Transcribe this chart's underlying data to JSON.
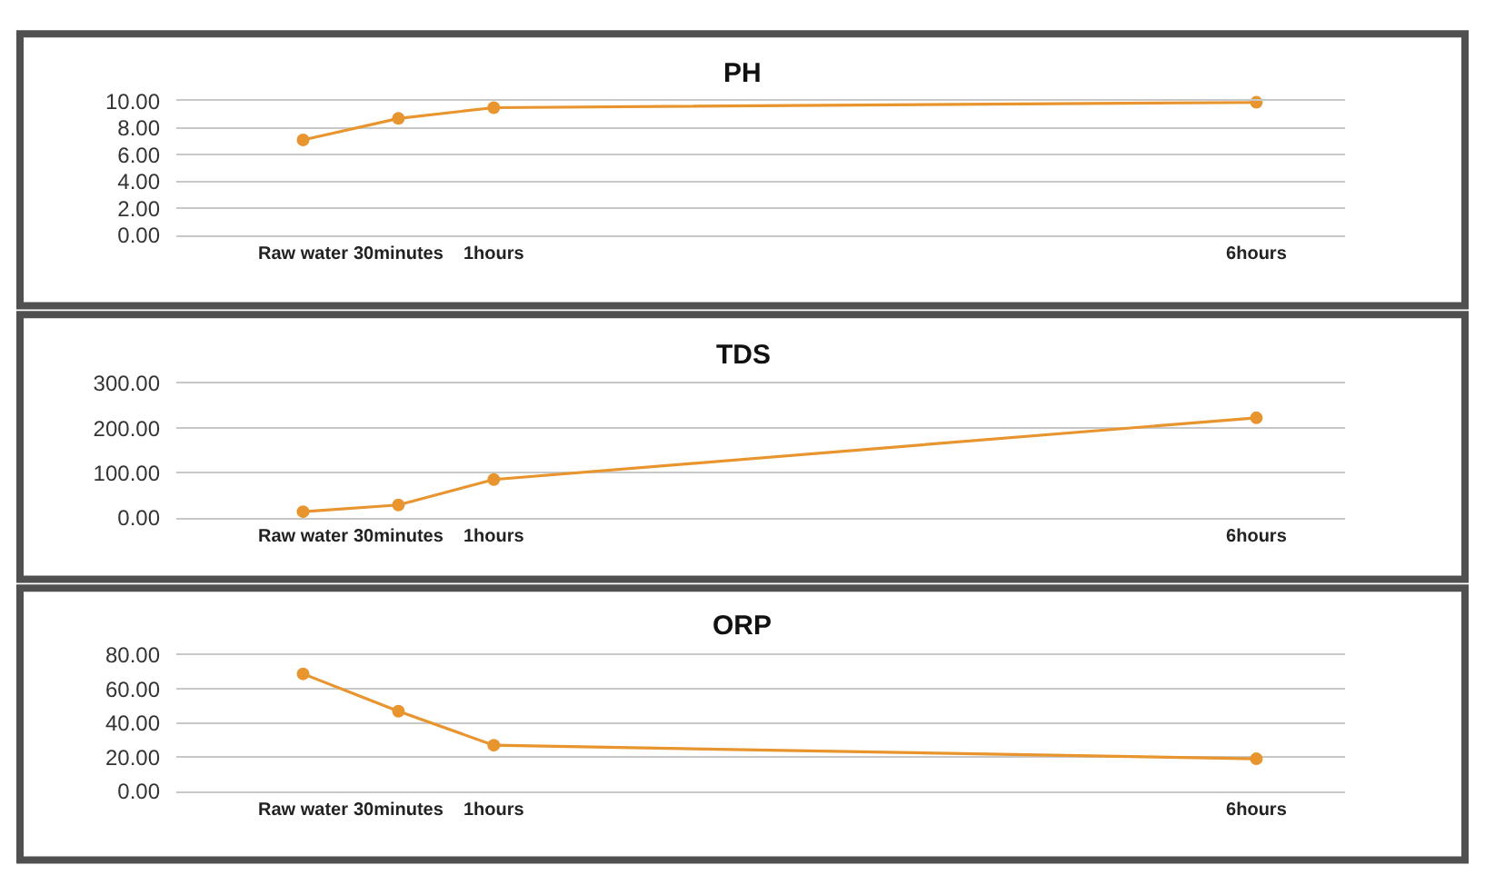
{
  "chart_data": [
    {
      "type": "line",
      "title": "PH",
      "categories": [
        "Raw water",
        "30minutes",
        "1hours",
        null,
        null,
        null,
        null,
        null,
        null,
        null,
        "6hours"
      ],
      "values": [
        7.1,
        8.7,
        9.5,
        null,
        null,
        null,
        null,
        null,
        null,
        null,
        9.9
      ],
      "color": "#e8952f",
      "marker": "circle",
      "line_style": "solid",
      "grid": "y",
      "ylim": [
        0,
        10
      ],
      "yticks": [
        {
          "value": 0,
          "label": "0.00"
        },
        {
          "value": 2,
          "label": "2.00"
        },
        {
          "value": 4,
          "label": "4.00"
        },
        {
          "value": 6,
          "label": "6.00"
        },
        {
          "value": 8,
          "label": "8.00"
        },
        {
          "value": 10,
          "label": "10.00"
        }
      ]
    },
    {
      "type": "line",
      "title": "TDS",
      "categories": [
        "Raw water",
        "30minutes",
        "1hours",
        null,
        null,
        null,
        null,
        null,
        null,
        null,
        "6hours"
      ],
      "values": [
        13,
        28,
        85,
        null,
        null,
        null,
        null,
        null,
        null,
        null,
        223
      ],
      "color": "#e8952f",
      "marker": "circle",
      "line_style": "solid",
      "grid": "y",
      "ylim": [
        0,
        300
      ],
      "yticks": [
        {
          "value": 0,
          "label": "0.00"
        },
        {
          "value": 100,
          "label": "100.00"
        },
        {
          "value": 200,
          "label": "200.00"
        },
        {
          "value": 300,
          "label": "300.00"
        }
      ]
    },
    {
      "type": "line",
      "title": "ORP",
      "categories": [
        "Raw water",
        "30minutes",
        "1hours",
        null,
        null,
        null,
        null,
        null,
        null,
        null,
        "6hours"
      ],
      "values": [
        69,
        47,
        27,
        null,
        null,
        null,
        null,
        null,
        null,
        null,
        19
      ],
      "color": "#e8952f",
      "marker": "circle",
      "line_style": "solid",
      "grid": "y",
      "ylim": [
        0,
        80
      ],
      "yticks": [
        {
          "value": 0,
          "label": "0.00"
        },
        {
          "value": 20,
          "label": "20.00"
        },
        {
          "value": 40,
          "label": "40.00"
        },
        {
          "value": 60,
          "label": "60.00"
        },
        {
          "value": 80,
          "label": "80.00"
        }
      ]
    }
  ]
}
